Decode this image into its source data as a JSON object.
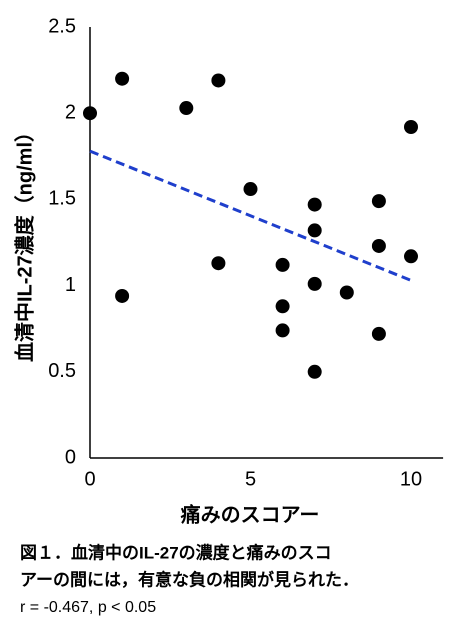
{
  "chart_data": {
    "type": "scatter",
    "ylabel": "血清中IL-27濃度（ng/ml）",
    "xlabel": "痛みのスコアー",
    "caption": [
      "図１．血清中のIL-27の濃度と痛みのスコ",
      "アーの間には，有意な負の相関が見られた．",
      "r = -0.467, p < 0.05"
    ],
    "x": [
      0,
      1,
      1,
      3,
      4,
      4,
      5,
      6,
      6,
      6,
      7,
      7,
      7,
      7,
      8,
      9,
      9,
      9,
      10,
      10
    ],
    "values": [
      2.0,
      2.2,
      0.94,
      2.03,
      2.19,
      1.13,
      1.56,
      1.12,
      0.88,
      0.74,
      1.47,
      1.32,
      1.01,
      0.5,
      0.96,
      1.49,
      1.23,
      0.72,
      1.92,
      1.17
    ],
    "color": "#000000",
    "trendline": {
      "x": [
        0,
        10
      ],
      "values": [
        1.78,
        1.03
      ],
      "color": "#1f3fcc"
    },
    "xlim": [
      0,
      11
    ],
    "xticks": [
      0,
      5,
      10
    ],
    "ylim": [
      0,
      2.5
    ],
    "yticks": [
      0,
      0.5,
      1,
      1.5,
      2,
      2.5
    ],
    "grid": false
  }
}
